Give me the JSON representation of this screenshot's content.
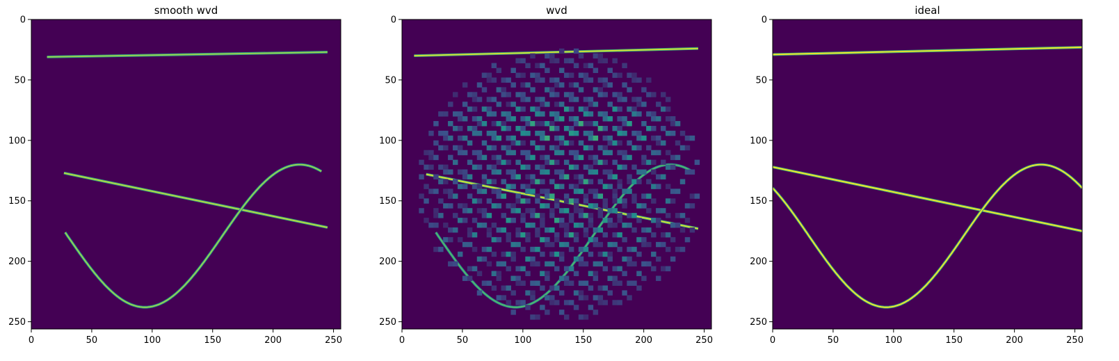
{
  "figure": {
    "background": "#ffffff",
    "colormap": "viridis",
    "colors": {
      "background": "#440154",
      "low": "#3b528b",
      "mid": "#21918c",
      "high": "#5ec962",
      "peak": "#fde725"
    }
  },
  "chart_data": [
    {
      "type": "heatmap",
      "title": "smooth wvd",
      "xlabel": "",
      "ylabel": "",
      "xlim": [
        0,
        256
      ],
      "ylim": [
        256,
        0
      ],
      "xticks": [
        0,
        50,
        100,
        150,
        200,
        250
      ],
      "yticks": [
        0,
        50,
        100,
        150,
        200,
        250
      ],
      "grid": false,
      "features": [
        {
          "kind": "line",
          "x": [
            13,
            245
          ],
          "y": [
            31,
            27
          ],
          "intensity": 0.85
        },
        {
          "kind": "line",
          "x": [
            27,
            245
          ],
          "y": [
            127,
            172
          ],
          "intensity": 0.9
        },
        {
          "kind": "sine",
          "x_range": [
            28,
            240
          ],
          "center": 179,
          "amplitude": 59,
          "period": 256,
          "phase_x": 94,
          "intensity": 0.85
        }
      ]
    },
    {
      "type": "heatmap",
      "title": "wvd",
      "xlabel": "",
      "ylabel": "",
      "xlim": [
        0,
        256
      ],
      "ylim": [
        256,
        0
      ],
      "xticks": [
        0,
        50,
        100,
        150,
        200,
        250
      ],
      "yticks": [
        0,
        50,
        100,
        150,
        200,
        250
      ],
      "grid": false,
      "features": [
        {
          "kind": "line",
          "x": [
            10,
            245
          ],
          "y": [
            30,
            24
          ],
          "intensity": 0.95
        },
        {
          "kind": "line",
          "x": [
            20,
            245
          ],
          "y": [
            128,
            173
          ],
          "intensity": 0.95
        },
        {
          "kind": "sine",
          "x_range": [
            28,
            240
          ],
          "center": 179,
          "amplitude": 59,
          "period": 256,
          "phase_x": 94,
          "intensity": 0.7
        },
        {
          "kind": "interference",
          "x_range": [
            10,
            245
          ],
          "y_range": [
            20,
            245
          ],
          "intensity": 0.6
        }
      ]
    },
    {
      "type": "heatmap",
      "title": "ideal",
      "xlabel": "",
      "ylabel": "",
      "xlim": [
        0,
        256
      ],
      "ylim": [
        256,
        0
      ],
      "xticks": [
        0,
        50,
        100,
        150,
        200,
        250
      ],
      "yticks": [
        0,
        50,
        100,
        150,
        200,
        250
      ],
      "grid": false,
      "features": [
        {
          "kind": "line",
          "x": [
            0,
            256
          ],
          "y": [
            29,
            23
          ],
          "intensity": 1.0
        },
        {
          "kind": "line",
          "x": [
            0,
            256
          ],
          "y": [
            122,
            175
          ],
          "intensity": 1.0
        },
        {
          "kind": "sine",
          "x_range": [
            0,
            256
          ],
          "center": 179,
          "amplitude": 59,
          "period": 256,
          "phase_x": 94,
          "intensity": 1.0
        }
      ]
    }
  ]
}
